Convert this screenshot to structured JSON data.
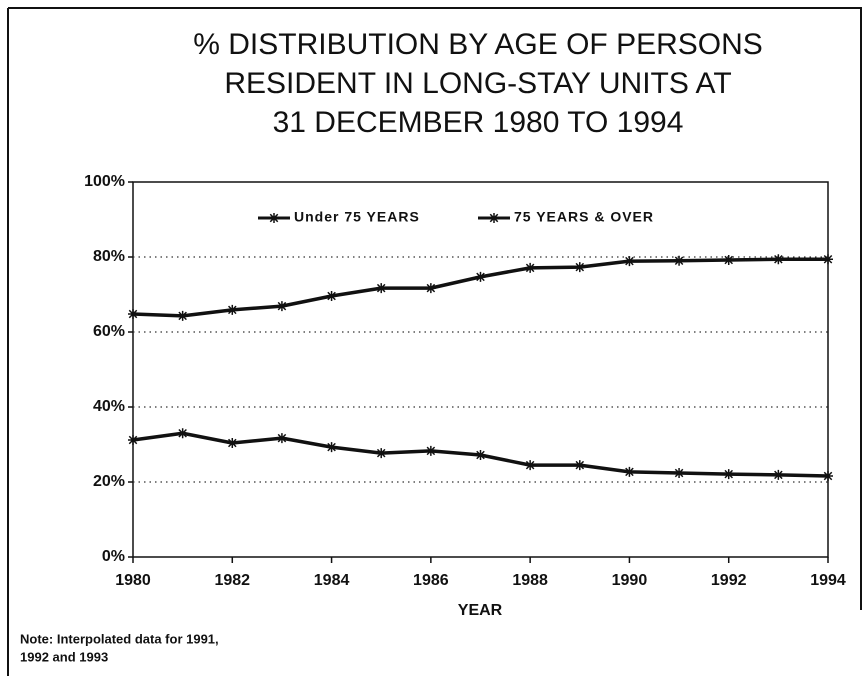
{
  "chart_data": {
    "type": "line",
    "title": [
      "% DISTRIBUTION BY AGE OF PERSONS",
      "RESIDENT IN LONG-STAY UNITS AT",
      "31 DECEMBER 1980 TO 1994"
    ],
    "xlabel": "YEAR",
    "note": [
      "Note: Interpolated data for 1991,",
      "1992 and 1993"
    ],
    "x": [
      1980,
      1981,
      1982,
      1983,
      1984,
      1985,
      1986,
      1987,
      1988,
      1989,
      1990,
      1991,
      1992,
      1993,
      1994
    ],
    "series": [
      {
        "name": "Under 75 YEARS",
        "color": "#111111",
        "values": [
          31.2,
          33.0,
          30.4,
          31.7,
          29.3,
          27.7,
          28.3,
          27.2,
          24.5,
          24.5,
          22.7,
          22.4,
          22.1,
          21.9,
          21.6
        ]
      },
      {
        "name": "75 YEARS & OVER",
        "color": "#111111",
        "values": [
          64.8,
          64.3,
          65.9,
          66.9,
          69.6,
          71.7,
          71.7,
          74.7,
          77.1,
          77.3,
          78.9,
          79.0,
          79.2,
          79.4,
          79.4
        ]
      }
    ],
    "xlim": [
      1980,
      1994
    ],
    "xticks": [
      1980,
      1982,
      1984,
      1986,
      1988,
      1990,
      1992,
      1994
    ],
    "ylim": [
      0,
      100
    ],
    "yticks": [
      {
        "value": 0,
        "label": "0%"
      },
      {
        "value": 20,
        "label": "20%"
      },
      {
        "value": 40,
        "label": "40%"
      },
      {
        "value": 60,
        "label": "60%"
      },
      {
        "value": 80,
        "label": "80%"
      },
      {
        "value": 100,
        "label": "100%"
      }
    ],
    "grid": true,
    "legend_position": "top"
  }
}
